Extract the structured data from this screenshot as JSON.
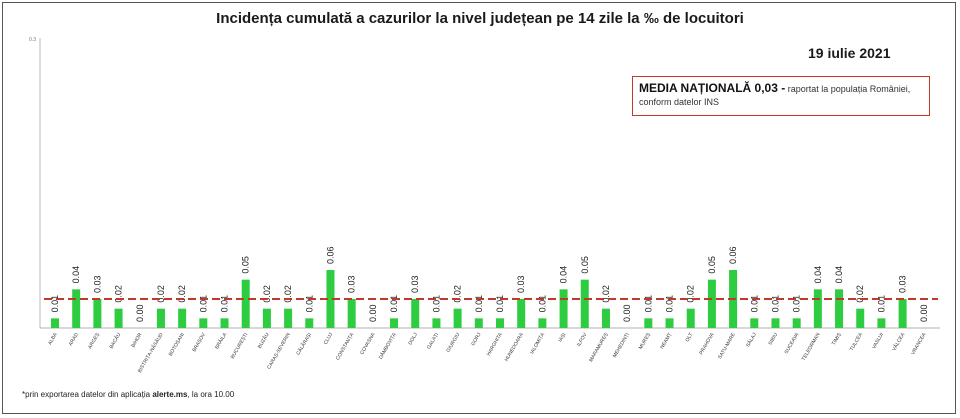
{
  "title": "Incidența cumulată a cazurilor la nivel județean pe 14 zile   la ‰ de locuitori",
  "date": "19 iulie 2021",
  "legend": {
    "bold_text": "MEDIA NAȚIONALĂ  0,03 -",
    "rest_line1": " raportat la populația României,",
    "rest_line2": "conform datelor INS"
  },
  "footnote": {
    "prefix": "*prin exportarea datelor din aplicația ",
    "bold": "alerte.ms",
    "suffix": ", la ora 10.00"
  },
  "colors": {
    "bar": "#2ecc40",
    "avg_line": "#c0392b"
  },
  "chart_data": {
    "type": "bar",
    "title": "Incidența cumulată a cazurilor la nivel județean pe 14 zile   la ‰ de locuitori",
    "xlabel": "",
    "ylabel": "",
    "y_tick_top": "0.3",
    "ylim": [
      0,
      0.3
    ],
    "grid": false,
    "legend_position": "top-right",
    "average_line": 0.03,
    "categories": [
      "ALBA",
      "ARAD",
      "ARGEȘ",
      "BACĂU",
      "BIHOR",
      "BISTRIȚA-NĂSĂUD",
      "BOTOȘANI",
      "BRAȘOV",
      "BRĂILA",
      "BUCUREȘTI",
      "BUZĂU",
      "CARAȘ-SEVERIN",
      "CĂLĂRAȘI",
      "CLUJ",
      "CONSTANȚA",
      "COVASNA",
      "DÂMBOVIȚA",
      "DOLJ",
      "GALAȚI",
      "GIURGIU",
      "GORJ",
      "HARGHITA",
      "HUNEDOARA",
      "IALOMIȚA",
      "IAȘI",
      "ILFOV",
      "MARAMUREȘ",
      "MEHEDINȚI",
      "MUREȘ",
      "NEAMȚ",
      "OLT",
      "PRAHOVA",
      "SATU-MARE",
      "SĂLAJ",
      "SIBIU",
      "SUCEAVA",
      "TELEORMAN",
      "TIMIȘ",
      "TULCEA",
      "VASLUI",
      "VÂLCEA",
      "VRANCEA"
    ],
    "values": [
      0.01,
      0.04,
      0.03,
      0.02,
      0.0,
      0.02,
      0.02,
      0.01,
      0.01,
      0.05,
      0.02,
      0.02,
      0.01,
      0.06,
      0.03,
      0.0,
      0.01,
      0.03,
      0.01,
      0.02,
      0.01,
      0.01,
      0.03,
      0.01,
      0.04,
      0.05,
      0.02,
      0.0,
      0.01,
      0.01,
      0.02,
      0.05,
      0.06,
      0.01,
      0.01,
      0.01,
      0.04,
      0.04,
      0.02,
      0.01,
      0.03,
      0.0
    ],
    "value_labels": [
      "0.01",
      "0.04",
      "0.03",
      "0.02",
      "0.00",
      "0.02",
      "0.02",
      "0.01",
      "0.01",
      "0.05",
      "0.02",
      "0.02",
      "0.01",
      "0.06",
      "0.03",
      "0.00",
      "0.01",
      "0.03",
      "0.01",
      "0.02",
      "0.01",
      "0.01",
      "0.03",
      "0.01",
      "0.04",
      "0.05",
      "0.02",
      "0.00",
      "0.01",
      "0.01",
      "0.02",
      "0.05",
      "0.06",
      "0.01",
      "0.01",
      "0.01",
      "0.04",
      "0.04",
      "0.02",
      "0.01",
      "0.03",
      "0.00"
    ]
  }
}
